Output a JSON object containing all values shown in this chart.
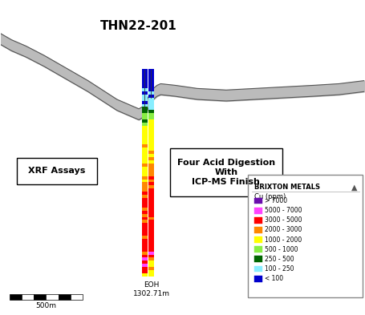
{
  "title": "THN22-201",
  "eoh_label": "EOH\n1302.71m",
  "xrf_label": "XRF Assays",
  "lab_label": "Four Acid Digestion\nWith\nICP-MS Finish",
  "scale_label": "500m",
  "brixton_label": "BRIXTON METALS",
  "legend_title": "Cu (ppm)",
  "legend_colors": [
    "#6a0dad",
    "#ff44ff",
    "#ff0000",
    "#ff8800",
    "#ffff00",
    "#88ee44",
    "#006600",
    "#88eeff",
    "#0000cc"
  ],
  "legend_labels": [
    "> 7000",
    "5000 - 7000",
    "3000 - 5000",
    "2000 - 3000",
    "1000 - 2000",
    "500 - 1000",
    "250 - 500",
    "100 - 250",
    "< 100"
  ],
  "bg_color": "#ffffff",
  "col1_segments": [
    "#0000cc",
    "#0000cc",
    "#0000cc",
    "#0000cc",
    "#0000cc",
    "#0000cc",
    "#88eeff",
    "#0000cc",
    "#88eeff",
    "#88eeff",
    "#0000cc",
    "#88eeff",
    "#006600",
    "#006600",
    "#88ee44",
    "#88ee44",
    "#006600",
    "#88ee44",
    "#ffff00",
    "#ffff00",
    "#ffff00",
    "#ffff00",
    "#ffff00",
    "#ffff00",
    "#ff8800",
    "#ffff00",
    "#ffff00",
    "#ffff00",
    "#ffff00",
    "#ffff00",
    "#ff8800",
    "#ffff00",
    "#ffff00",
    "#ffff00",
    "#ff8800",
    "#ffff00",
    "#ff8800",
    "#ff8800",
    "#ff8800",
    "#ff0000",
    "#ff8800",
    "#ff0000",
    "#ff0000",
    "#ff0000",
    "#ff8800",
    "#ff0000",
    "#ff8800",
    "#ff0000",
    "#ff8800",
    "#ff0000",
    "#ff0000",
    "#ff0000",
    "#ff0000",
    "#ff8800",
    "#ff0000",
    "#ff0000",
    "#ff0000",
    "#ff0000",
    "#ff8800",
    "#ff0000",
    "#ff44ff",
    "#ff0000",
    "#ff44ff",
    "#ff0000",
    "#ff0000",
    "#ffff00"
  ],
  "col2_segments": [
    "#0000cc",
    "#0000cc",
    "#0000cc",
    "#0000cc",
    "#0000cc",
    "#0000cc",
    "#0000cc",
    "#88eeff",
    "#0000cc",
    "#88eeff",
    "#88eeff",
    "#88eeff",
    "#88eeff",
    "#006600",
    "#88ee44",
    "#88ee44",
    "#ffff00",
    "#ffff00",
    "#ffff00",
    "#ffff00",
    "#ffff00",
    "#ffff00",
    "#ffff00",
    "#ffff00",
    "#ffff00",
    "#ffff00",
    "#ff8800",
    "#ffff00",
    "#ff8800",
    "#ffff00",
    "#ff8800",
    "#ff8800",
    "#ff8800",
    "#ff8800",
    "#ff0000",
    "#ff8800",
    "#ff0000",
    "#ff8800",
    "#ff0000",
    "#ff0000",
    "#ff0000",
    "#ff0000",
    "#ff0000",
    "#ff0000",
    "#ff0000",
    "#ff0000",
    "#ff0000",
    "#ff8800",
    "#ff0000",
    "#ff0000",
    "#ff0000",
    "#ff0000",
    "#ff0000",
    "#ff0000",
    "#ff0000",
    "#ff0000",
    "#ff0000",
    "#ff0000",
    "#ff44ff",
    "#ff0000",
    "#ff8800",
    "#ffff00",
    "#ffff00",
    "#ff8800",
    "#ffff00",
    "#ffff00"
  ],
  "terrain_line1_x": [
    0.0,
    0.03,
    0.07,
    0.12,
    0.18,
    0.24,
    0.28,
    0.32,
    0.36,
    0.38,
    0.395,
    0.405,
    0.415,
    0.43,
    0.44,
    0.48,
    0.54,
    0.62,
    0.7,
    0.78,
    0.86,
    0.93,
    1.0
  ],
  "terrain_line1_y": [
    0.86,
    0.84,
    0.82,
    0.79,
    0.75,
    0.71,
    0.68,
    0.65,
    0.63,
    0.62,
    0.63,
    0.655,
    0.68,
    0.695,
    0.7,
    0.695,
    0.685,
    0.68,
    0.685,
    0.69,
    0.695,
    0.7,
    0.71
  ],
  "terrain_line2_x": [
    0.0,
    0.03,
    0.07,
    0.12,
    0.18,
    0.24,
    0.28,
    0.32,
    0.36,
    0.38,
    0.395,
    0.405,
    0.415,
    0.43,
    0.44,
    0.48,
    0.54,
    0.62,
    0.7,
    0.78,
    0.86,
    0.93,
    1.0
  ],
  "terrain_line2_y": [
    0.895,
    0.875,
    0.855,
    0.825,
    0.785,
    0.745,
    0.715,
    0.685,
    0.665,
    0.655,
    0.665,
    0.69,
    0.715,
    0.73,
    0.735,
    0.73,
    0.72,
    0.715,
    0.72,
    0.725,
    0.73,
    0.735,
    0.745
  ]
}
